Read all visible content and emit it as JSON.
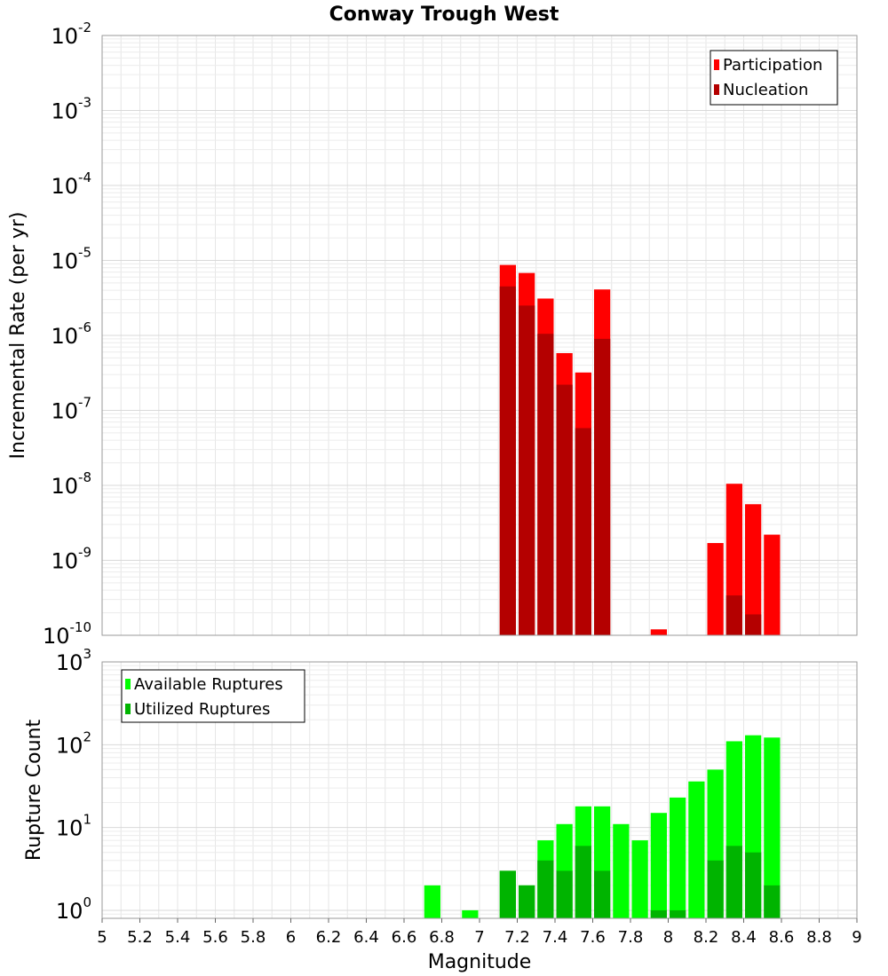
{
  "title": "Conway Trough West",
  "chart_data": [
    {
      "type": "bar",
      "ylabel": "Incremental Rate (per yr)",
      "y_scale": "log",
      "ylim": [
        1e-10,
        0.01
      ],
      "xlim": [
        5,
        9
      ],
      "bar_width": 0.1,
      "y_tick_base": "10",
      "y_ticks": [
        {
          "value": 0.01,
          "exp": "-2"
        },
        {
          "value": 0.001,
          "exp": "-3"
        },
        {
          "value": 0.0001,
          "exp": "-4"
        },
        {
          "value": 1e-05,
          "exp": "-5"
        },
        {
          "value": 1e-06,
          "exp": "-6"
        },
        {
          "value": 1e-07,
          "exp": "-7"
        },
        {
          "value": 1e-08,
          "exp": "-8"
        },
        {
          "value": 1e-09,
          "exp": "-9"
        },
        {
          "value": 1e-10,
          "exp": "-10"
        }
      ],
      "legend_position": "top-right",
      "series": [
        {
          "name": "Participation",
          "color": "#ff0000",
          "points": [
            {
              "x": 7.15,
              "y": 8.7e-06
            },
            {
              "x": 7.25,
              "y": 6.8e-06
            },
            {
              "x": 7.35,
              "y": 3.1e-06
            },
            {
              "x": 7.45,
              "y": 5.8e-07
            },
            {
              "x": 7.55,
              "y": 3.2e-07
            },
            {
              "x": 7.65,
              "y": 4.1e-06
            },
            {
              "x": 7.95,
              "y": 1.2e-10
            },
            {
              "x": 8.25,
              "y": 1.7e-09
            },
            {
              "x": 8.35,
              "y": 1.05e-08
            },
            {
              "x": 8.45,
              "y": 5.6e-09
            },
            {
              "x": 8.55,
              "y": 2.2e-09
            }
          ]
        },
        {
          "name": "Nucleation",
          "color": "#b40000",
          "points": [
            {
              "x": 7.15,
              "y": 4.5e-06
            },
            {
              "x": 7.25,
              "y": 2.5e-06
            },
            {
              "x": 7.35,
              "y": 1.05e-06
            },
            {
              "x": 7.45,
              "y": 2.2e-07
            },
            {
              "x": 7.55,
              "y": 5.8e-08
            },
            {
              "x": 7.65,
              "y": 9e-07
            },
            {
              "x": 8.35,
              "y": 3.4e-10
            },
            {
              "x": 8.45,
              "y": 1.9e-10
            }
          ]
        }
      ]
    },
    {
      "type": "bar",
      "xlabel": "Magnitude",
      "ylabel": "Rupture Count",
      "y_scale": "log",
      "ylim": [
        0.8,
        1000
      ],
      "xlim": [
        5,
        9
      ],
      "bar_width": 0.1,
      "y_tick_base": "10",
      "y_ticks": [
        {
          "value": 1000,
          "exp": "3"
        },
        {
          "value": 100,
          "exp": "2"
        },
        {
          "value": 10,
          "exp": "1"
        },
        {
          "value": 1,
          "exp": "0"
        }
      ],
      "x_ticks": [
        "5",
        "5.2",
        "5.4",
        "5.6",
        "5.8",
        "6",
        "6.2",
        "6.4",
        "6.6",
        "6.8",
        "7",
        "7.2",
        "7.4",
        "7.6",
        "7.8",
        "8",
        "8.2",
        "8.4",
        "8.6",
        "8.8",
        "9"
      ],
      "legend_position": "top-left",
      "series": [
        {
          "name": "Available Ruptures",
          "color": "#00ff00",
          "points": [
            {
              "x": 6.75,
              "y": 2
            },
            {
              "x": 6.95,
              "y": 1
            },
            {
              "x": 7.15,
              "y": 3
            },
            {
              "x": 7.25,
              "y": 2
            },
            {
              "x": 7.35,
              "y": 7
            },
            {
              "x": 7.45,
              "y": 11
            },
            {
              "x": 7.55,
              "y": 18
            },
            {
              "x": 7.65,
              "y": 18
            },
            {
              "x": 7.75,
              "y": 11
            },
            {
              "x": 7.85,
              "y": 7
            },
            {
              "x": 7.95,
              "y": 15
            },
            {
              "x": 8.05,
              "y": 23
            },
            {
              "x": 8.15,
              "y": 36
            },
            {
              "x": 8.25,
              "y": 50
            },
            {
              "x": 8.35,
              "y": 110
            },
            {
              "x": 8.45,
              "y": 130
            },
            {
              "x": 8.55,
              "y": 122
            }
          ]
        },
        {
          "name": "Utilized Ruptures",
          "color": "#00b400",
          "points": [
            {
              "x": 7.15,
              "y": 3
            },
            {
              "x": 7.25,
              "y": 2
            },
            {
              "x": 7.35,
              "y": 4
            },
            {
              "x": 7.45,
              "y": 3
            },
            {
              "x": 7.55,
              "y": 6
            },
            {
              "x": 7.65,
              "y": 3
            },
            {
              "x": 7.95,
              "y": 1
            },
            {
              "x": 8.05,
              "y": 1
            },
            {
              "x": 8.25,
              "y": 4
            },
            {
              "x": 8.35,
              "y": 6
            },
            {
              "x": 8.45,
              "y": 5
            },
            {
              "x": 8.55,
              "y": 2
            }
          ]
        }
      ]
    }
  ]
}
